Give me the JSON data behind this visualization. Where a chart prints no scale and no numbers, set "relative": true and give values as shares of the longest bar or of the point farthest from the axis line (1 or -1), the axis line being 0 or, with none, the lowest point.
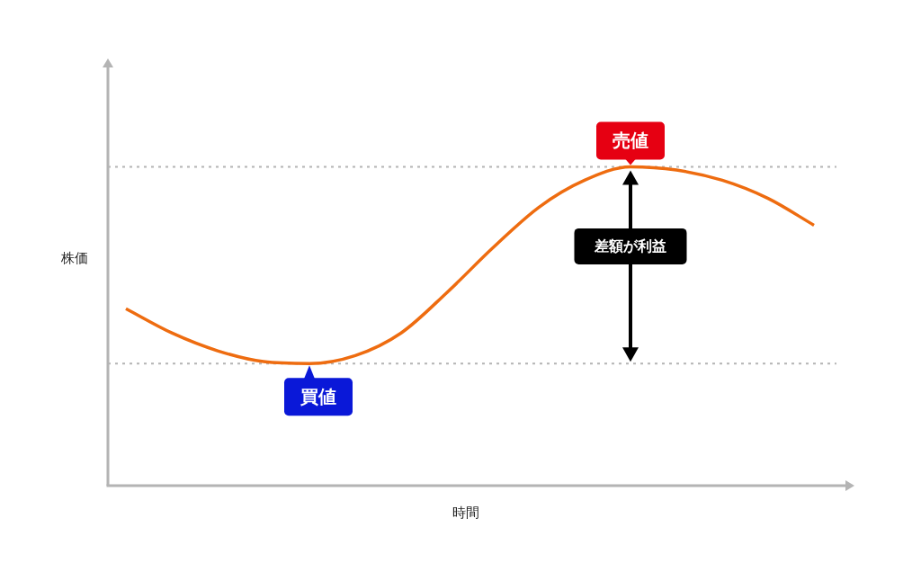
{
  "chart_data": {
    "type": "line",
    "xlabel": "時間",
    "ylabel": "株価",
    "relative": true,
    "categories": [
      null,
      null,
      null,
      null,
      null,
      null,
      null,
      null,
      null,
      null,
      null,
      null,
      null,
      null,
      null,
      null
    ],
    "series": [
      {
        "color": "#ee6c10",
        "values": [
          0.555,
          0.479,
          0.423,
          0.389,
          0.383,
          0.408,
          0.479,
          0.606,
          0.746,
          0.873,
          0.958,
          1,
          0.99,
          0.958,
          0.901,
          0.817
        ]
      }
    ],
    "ref_lines": [
      {
        "axis": "y",
        "value": 1,
        "label": "売値",
        "color": "#b4b4b4",
        "line_style": "dotted"
      },
      {
        "axis": "y",
        "value": 0.383,
        "label": "買値",
        "color": "#b4b4b4",
        "line_style": "dotted"
      }
    ],
    "annotations": [
      "差額が利益"
    ]
  }
}
